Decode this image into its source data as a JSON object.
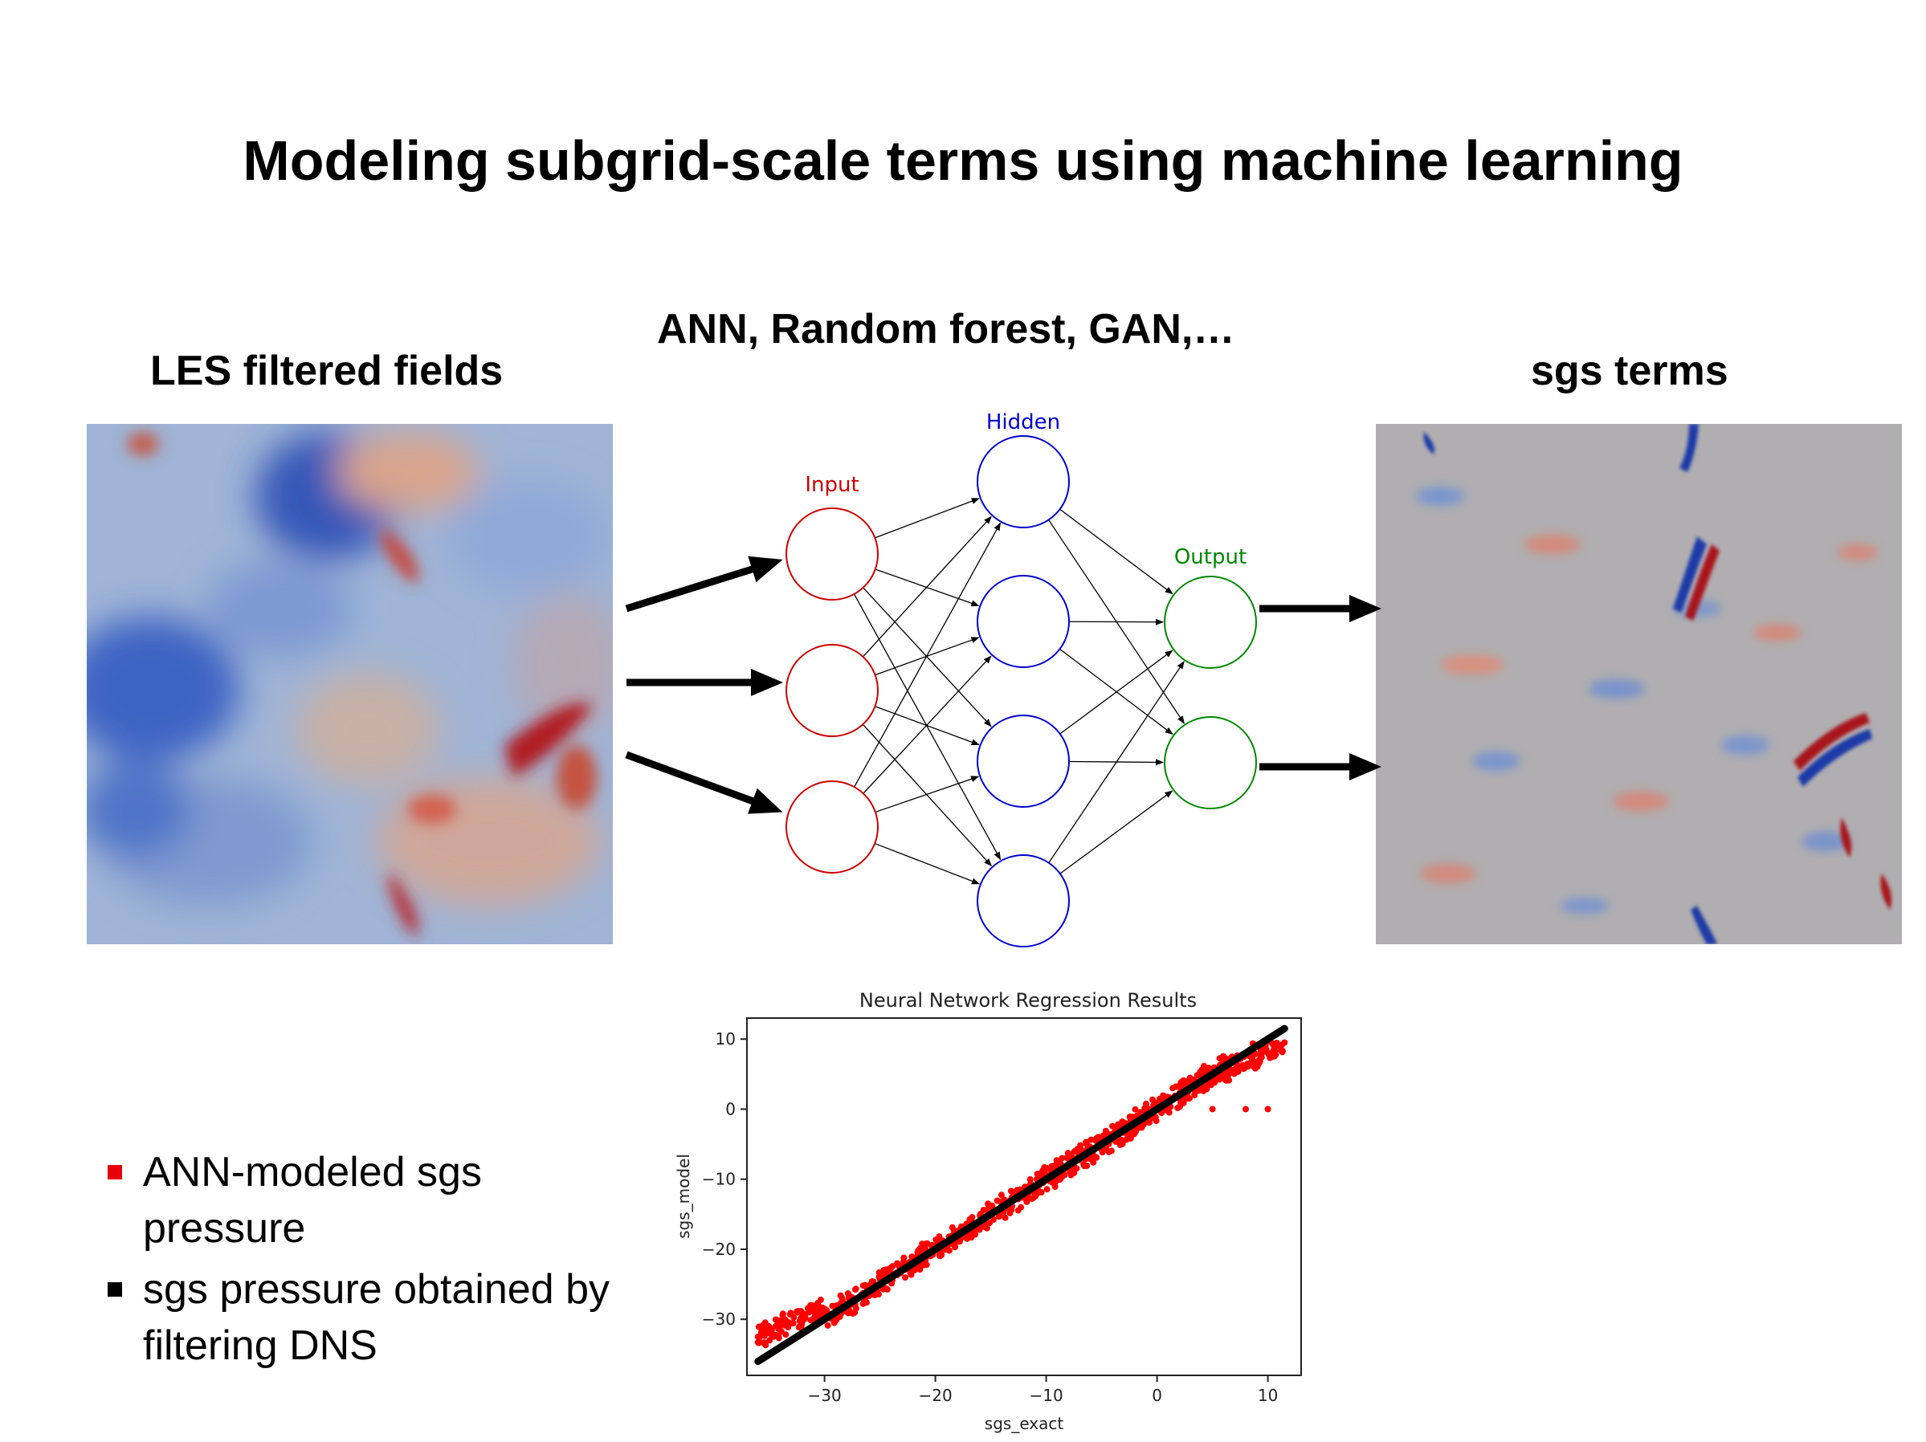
{
  "title": "Modeling subgrid-scale terms using machine learning",
  "subtitle_methods": "ANN, Random forest, GAN,…",
  "left_panel": {
    "label": "LES filtered fields"
  },
  "right_panel": {
    "label": "sgs terms"
  },
  "network": {
    "labels": {
      "input": "Input",
      "hidden": "Hidden",
      "output": "Output"
    },
    "counts": {
      "input": 3,
      "hidden": 4,
      "output": 2
    },
    "colors": {
      "input": "#cc0000",
      "hidden": "#0000cc",
      "output": "#008800"
    }
  },
  "legend": [
    {
      "text": "ANN-modeled sgs pressure",
      "color": "#e8000b"
    },
    {
      "text": "sgs pressure obtained by filtering DNS",
      "color": "#000000"
    }
  ],
  "chart_data": {
    "type": "scatter",
    "title": "Neural Network Regression Results",
    "xlabel": "sgs_exact",
    "ylabel": "sgs_model",
    "xlim": [
      -37,
      13
    ],
    "ylim": [
      -38,
      13
    ],
    "xticks": [
      -30,
      -20,
      -10,
      0,
      10
    ],
    "yticks": [
      -30,
      -20,
      -10,
      0,
      10
    ],
    "series": [
      {
        "color": "#ff0000",
        "x_range": [
          -36,
          11.5
        ],
        "points": [
          [
            -36,
            -32.5
          ],
          [
            -30,
            -28.5
          ],
          [
            -20,
            -19.5
          ],
          [
            -10,
            -9.5
          ],
          [
            0,
            0
          ],
          [
            5,
            5
          ],
          [
            10,
            8
          ],
          [
            11.5,
            9.5
          ],
          [
            5,
            0
          ],
          [
            8,
            0
          ],
          [
            10,
            0
          ]
        ]
      },
      {
        "color": "#000000",
        "line": {
          "x": [
            -36,
            11.5
          ],
          "y": [
            -36,
            11.5
          ]
        }
      }
    ]
  }
}
